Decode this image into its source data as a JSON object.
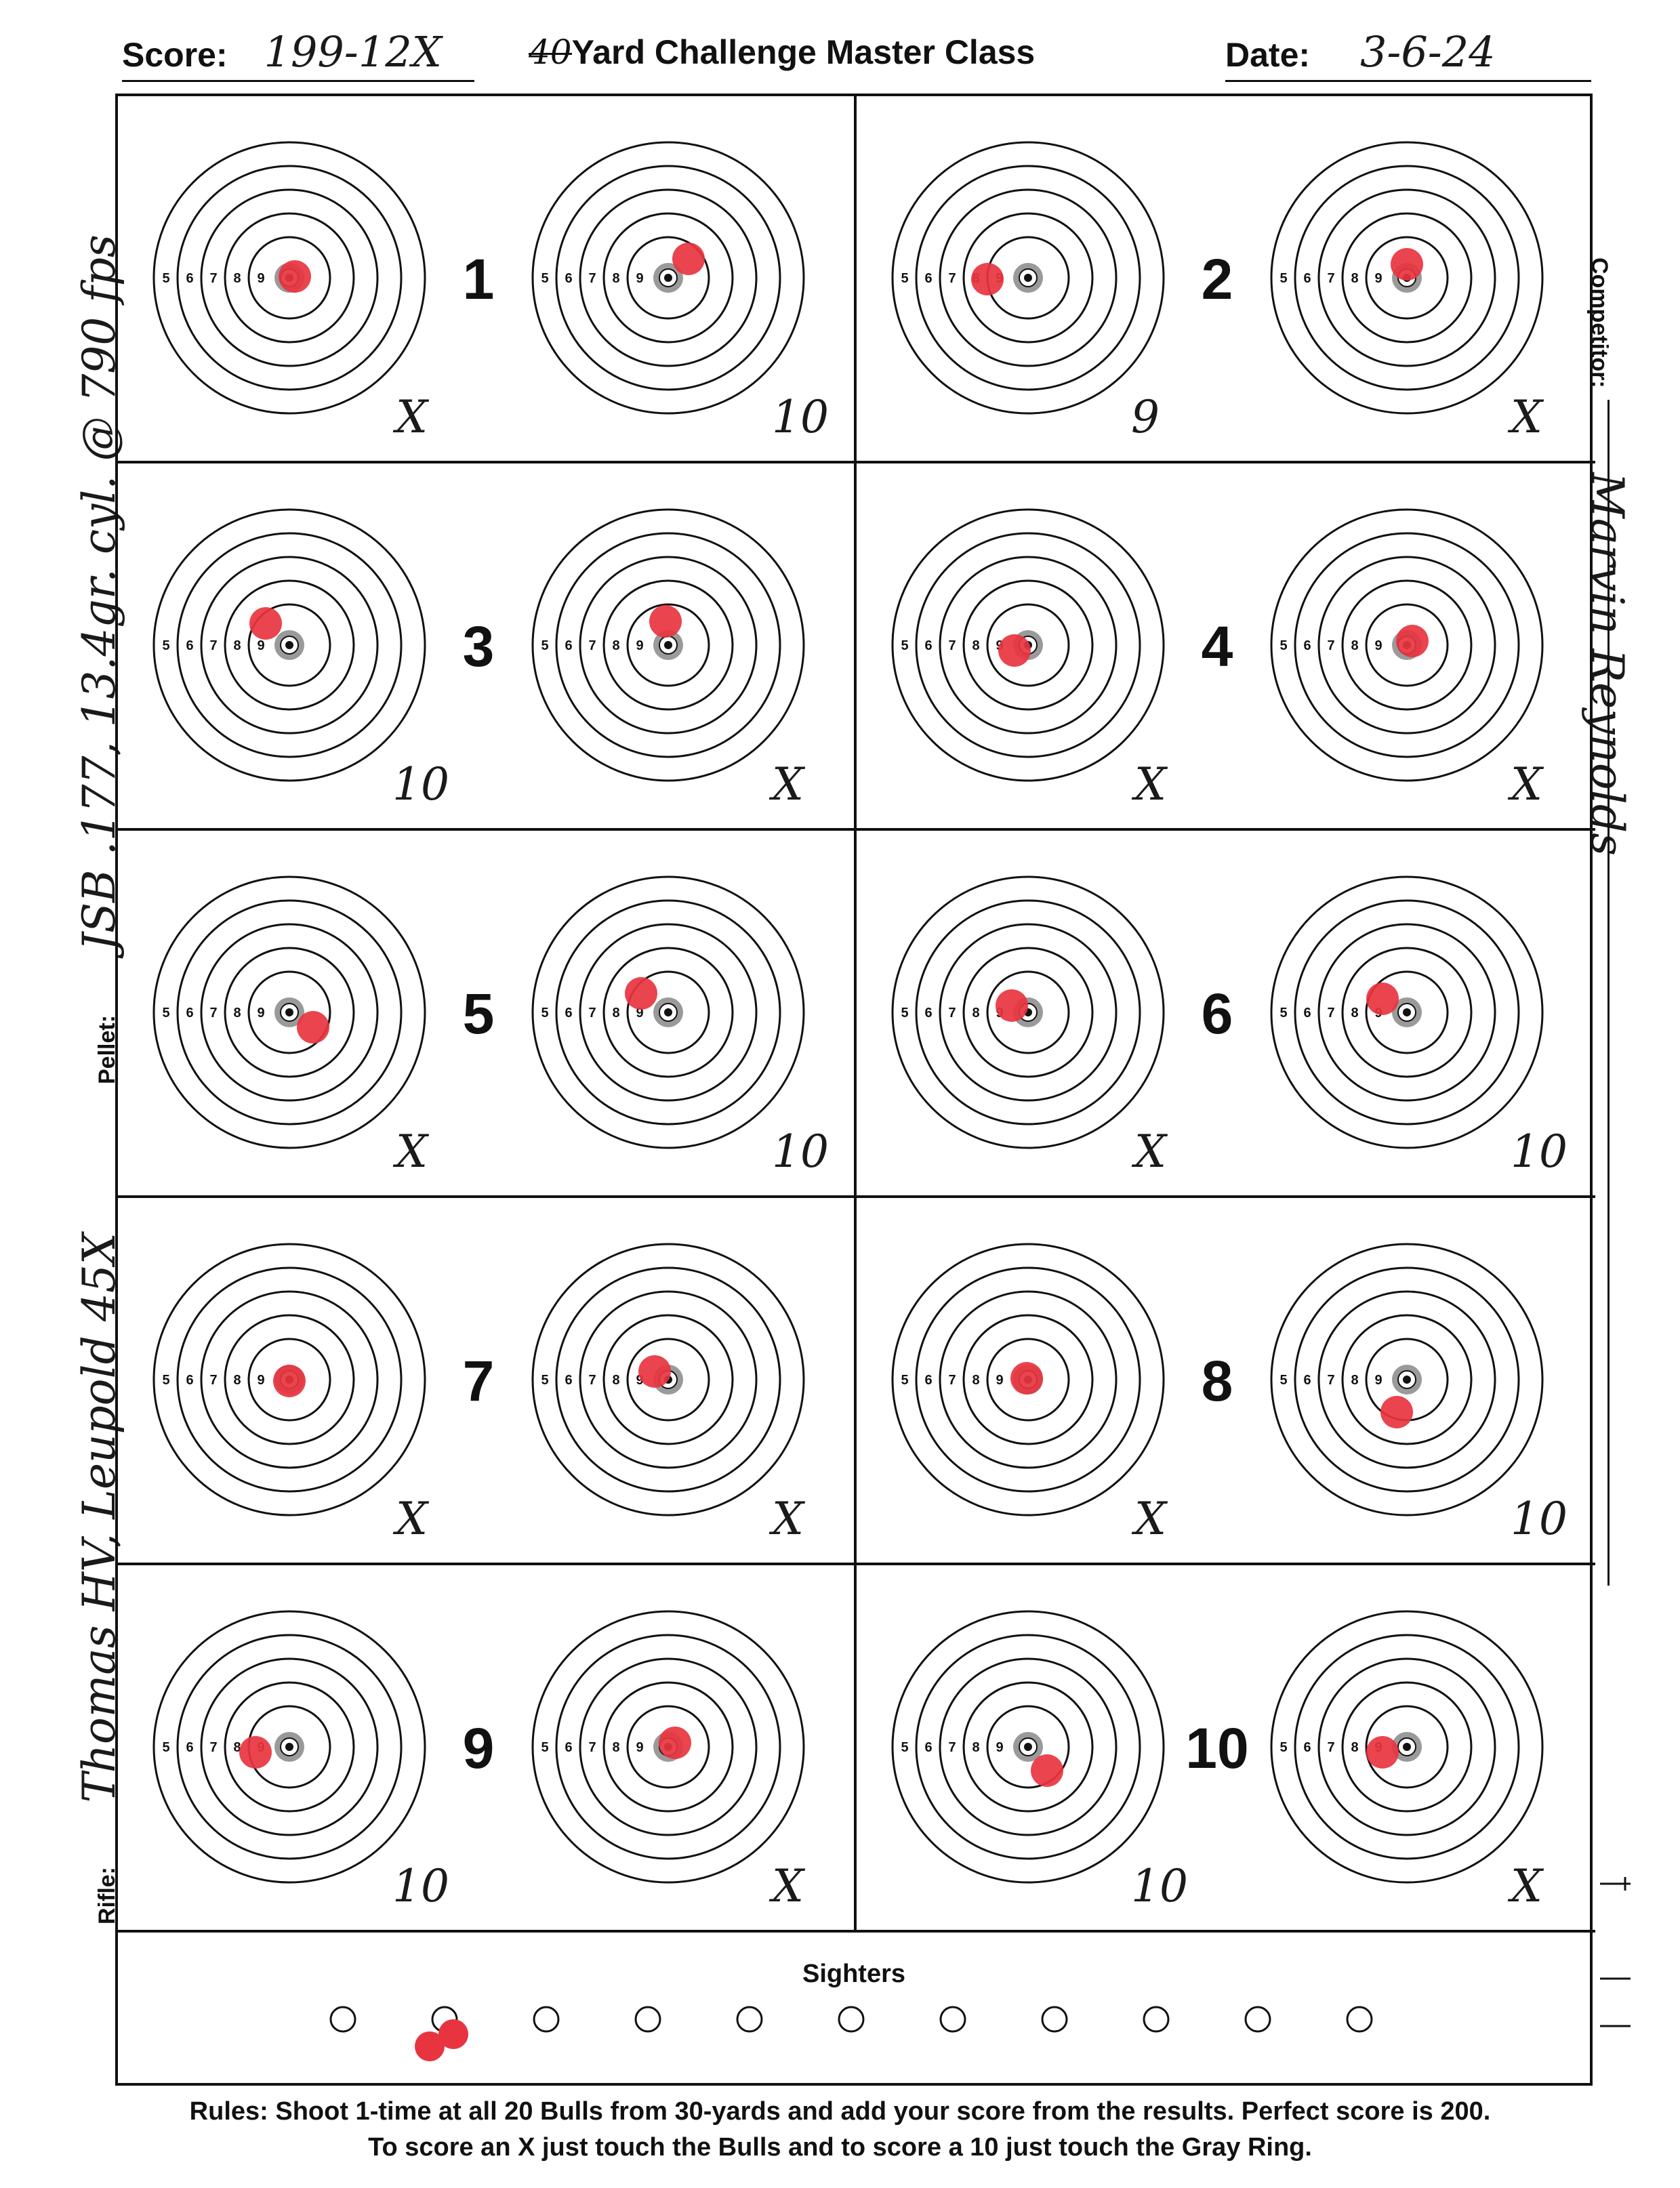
{
  "header": {
    "score_label": "Score:",
    "score_value": "199-12X",
    "title_struck": "40",
    "title_rest": "Yard Challenge Master Class",
    "date_label": "Date:",
    "date_value": "3-6-24"
  },
  "side": {
    "rifle_label": "Rifle:",
    "rifle_value": "Thomas HV, Leupold 45X",
    "pellet_label": "Pellet:",
    "pellet_value": "JSB .177, 13.4gr. cyl. @ 790 fps",
    "competitor_label": "Competitor:",
    "competitor_value": "Marvin Reynolds"
  },
  "ring_labels": [
    "5",
    "6",
    "7",
    "8",
    "9"
  ],
  "bulls": [
    {
      "number": "1",
      "left_score": "X",
      "right_score": "10"
    },
    {
      "number": "2",
      "left_score": "9",
      "right_score": "X"
    },
    {
      "number": "3",
      "left_score": "10",
      "right_score": "X"
    },
    {
      "number": "4",
      "left_score": "X",
      "right_score": "X"
    },
    {
      "number": "5",
      "left_score": "X",
      "right_score": "10"
    },
    {
      "number": "6",
      "left_score": "X",
      "right_score": "10"
    },
    {
      "number": "7",
      "left_score": "X",
      "right_score": "X"
    },
    {
      "number": "8",
      "left_score": "X",
      "right_score": "10"
    },
    {
      "number": "9",
      "left_score": "10",
      "right_score": "X"
    },
    {
      "number": "10",
      "left_score": "10",
      "right_score": "X"
    }
  ],
  "sighters": {
    "label": "Sighters"
  },
  "rules": {
    "line1": "Rules: Shoot 1-time at all 20 Bulls from 30-yards and add your score from the results. Perfect score is 200.",
    "line2": "To score an X just touch the Bulls and to score a 10 just touch the Gray Ring."
  },
  "colors": {
    "ink": "#111111",
    "hit": "#e8343f",
    "gray_ring": "#9a9a9a"
  }
}
